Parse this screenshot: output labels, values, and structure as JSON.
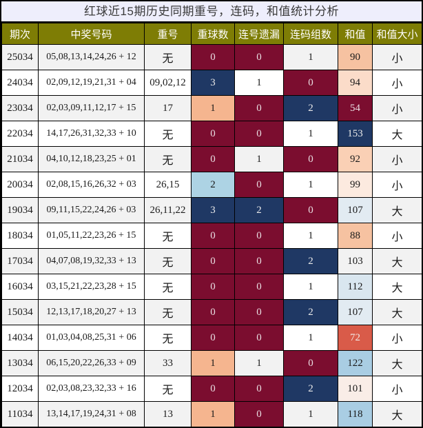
{
  "chart_data": {
    "type": "table",
    "title": "红球近15期历史同期重号，连码，和值统计分析",
    "columns": [
      "期次",
      "中奖号码",
      "重号",
      "重球数",
      "连号遗漏",
      "连码组数",
      "和值",
      "和值大小"
    ],
    "rows": [
      {
        "period": "25034",
        "numbers": "05,08,13,14,24,26 + 12",
        "repeat": "无",
        "repeat_count": {
          "v": "0",
          "bg": "#7b0d2f",
          "fg": "#eadfe3"
        },
        "consecutive_miss": {
          "v": "0",
          "bg": "#7b0d2f",
          "fg": "#eadfe3"
        },
        "consecutive_groups": {
          "v": "1",
          "bg": "",
          "fg": ""
        },
        "sum": {
          "v": "90",
          "bg": "#f6c2a1",
          "fg": ""
        },
        "size": "小"
      },
      {
        "period": "24034",
        "numbers": "02,09,12,19,21,31 + 04",
        "repeat": "09,02,12",
        "repeat_count": {
          "v": "3",
          "bg": "#1f3864",
          "fg": "#e9e9e9"
        },
        "consecutive_miss": {
          "v": "1",
          "bg": "",
          "fg": ""
        },
        "consecutive_groups": {
          "v": "0",
          "bg": "#7b0d2f",
          "fg": "#eadfe3"
        },
        "sum": {
          "v": "94",
          "bg": "#fbdcc9",
          "fg": ""
        },
        "size": "小"
      },
      {
        "period": "23034",
        "numbers": "02,03,09,11,12,17 + 15",
        "repeat": "17",
        "repeat_count": {
          "v": "1",
          "bg": "#f5b58f",
          "fg": ""
        },
        "consecutive_miss": {
          "v": "0",
          "bg": "#7b0d2f",
          "fg": "#eadfe3"
        },
        "consecutive_groups": {
          "v": "2",
          "bg": "#1f3864",
          "fg": "#e9e9e9"
        },
        "sum": {
          "v": "54",
          "bg": "#7b0d2f",
          "fg": "#eadfe3"
        },
        "size": "小"
      },
      {
        "period": "22034",
        "numbers": "14,17,26,31,32,33 + 10",
        "repeat": "无",
        "repeat_count": {
          "v": "0",
          "bg": "#7b0d2f",
          "fg": "#eadfe3"
        },
        "consecutive_miss": {
          "v": "0",
          "bg": "#7b0d2f",
          "fg": "#eadfe3"
        },
        "consecutive_groups": {
          "v": "1",
          "bg": "",
          "fg": ""
        },
        "sum": {
          "v": "153",
          "bg": "#1f3864",
          "fg": "#e9e9e9"
        },
        "size": "大"
      },
      {
        "period": "21034",
        "numbers": "04,10,12,18,23,25 + 01",
        "repeat": "无",
        "repeat_count": {
          "v": "0",
          "bg": "#7b0d2f",
          "fg": "#eadfe3"
        },
        "consecutive_miss": {
          "v": "1",
          "bg": "",
          "fg": ""
        },
        "consecutive_groups": {
          "v": "0",
          "bg": "#7b0d2f",
          "fg": "#eadfe3"
        },
        "sum": {
          "v": "92",
          "bg": "#fad0b5",
          "fg": ""
        },
        "size": "小"
      },
      {
        "period": "20034",
        "numbers": "02,08,15,16,26,32 + 03",
        "repeat": "26,15",
        "repeat_count": {
          "v": "2",
          "bg": "#add3e4",
          "fg": ""
        },
        "consecutive_miss": {
          "v": "0",
          "bg": "#7b0d2f",
          "fg": "#eadfe3"
        },
        "consecutive_groups": {
          "v": "1",
          "bg": "",
          "fg": ""
        },
        "sum": {
          "v": "99",
          "bg": "#fceadf",
          "fg": ""
        },
        "size": "小"
      },
      {
        "period": "19034",
        "numbers": "09,11,15,22,24,26 + 03",
        "repeat": "26,11,22",
        "repeat_count": {
          "v": "3",
          "bg": "#1f3864",
          "fg": "#e9e9e9"
        },
        "consecutive_miss": {
          "v": "2",
          "bg": "#1f3864",
          "fg": "#e9e9e9"
        },
        "consecutive_groups": {
          "v": "0",
          "bg": "#7b0d2f",
          "fg": "#eadfe3"
        },
        "sum": {
          "v": "107",
          "bg": "#e2ebf2",
          "fg": ""
        },
        "size": "大"
      },
      {
        "period": "18034",
        "numbers": "01,05,11,22,23,26 + 15",
        "repeat": "无",
        "repeat_count": {
          "v": "0",
          "bg": "#7b0d2f",
          "fg": "#eadfe3"
        },
        "consecutive_miss": {
          "v": "0",
          "bg": "#7b0d2f",
          "fg": "#eadfe3"
        },
        "consecutive_groups": {
          "v": "1",
          "bg": "",
          "fg": ""
        },
        "sum": {
          "v": "88",
          "bg": "#f6c2a1",
          "fg": ""
        },
        "size": "小"
      },
      {
        "period": "17034",
        "numbers": "04,07,08,19,32,33 + 13",
        "repeat": "无",
        "repeat_count": {
          "v": "0",
          "bg": "#7b0d2f",
          "fg": "#eadfe3"
        },
        "consecutive_miss": {
          "v": "0",
          "bg": "#7b0d2f",
          "fg": "#eadfe3"
        },
        "consecutive_groups": {
          "v": "2",
          "bg": "#1f3864",
          "fg": "#e9e9e9"
        },
        "sum": {
          "v": "103",
          "bg": "",
          "fg": ""
        },
        "size": "大"
      },
      {
        "period": "16034",
        "numbers": "03,15,21,22,23,28 + 15",
        "repeat": "无",
        "repeat_count": {
          "v": "0",
          "bg": "#7b0d2f",
          "fg": "#eadfe3"
        },
        "consecutive_miss": {
          "v": "0",
          "bg": "#7b0d2f",
          "fg": "#eadfe3"
        },
        "consecutive_groups": {
          "v": "1",
          "bg": "",
          "fg": ""
        },
        "sum": {
          "v": "112",
          "bg": "#d9e6ef",
          "fg": ""
        },
        "size": "大"
      },
      {
        "period": "15034",
        "numbers": "12,13,17,18,20,27 + 13",
        "repeat": "无",
        "repeat_count": {
          "v": "0",
          "bg": "#7b0d2f",
          "fg": "#eadfe3"
        },
        "consecutive_miss": {
          "v": "0",
          "bg": "#7b0d2f",
          "fg": "#eadfe3"
        },
        "consecutive_groups": {
          "v": "2",
          "bg": "#1f3864",
          "fg": "#e9e9e9"
        },
        "sum": {
          "v": "107",
          "bg": "#e2ebf2",
          "fg": ""
        },
        "size": "大"
      },
      {
        "period": "14034",
        "numbers": "01,03,04,08,25,31 + 06",
        "repeat": "无",
        "repeat_count": {
          "v": "0",
          "bg": "#7b0d2f",
          "fg": "#eadfe3"
        },
        "consecutive_miss": {
          "v": "0",
          "bg": "#7b0d2f",
          "fg": "#eadfe3"
        },
        "consecutive_groups": {
          "v": "1",
          "bg": "",
          "fg": ""
        },
        "sum": {
          "v": "72",
          "bg": "#d95b49",
          "fg": "#f2ece9"
        },
        "size": "小"
      },
      {
        "period": "13034",
        "numbers": "06,15,20,22,26,33 + 09",
        "repeat": "33",
        "repeat_count": {
          "v": "1",
          "bg": "#f5b58f",
          "fg": ""
        },
        "consecutive_miss": {
          "v": "1",
          "bg": "",
          "fg": ""
        },
        "consecutive_groups": {
          "v": "0",
          "bg": "#7b0d2f",
          "fg": "#eadfe3"
        },
        "sum": {
          "v": "122",
          "bg": "#a9cde3",
          "fg": ""
        },
        "size": "大"
      },
      {
        "period": "12034",
        "numbers": "02,03,08,23,32,33 + 16",
        "repeat": "无",
        "repeat_count": {
          "v": "0",
          "bg": "#7b0d2f",
          "fg": "#eadfe3"
        },
        "consecutive_miss": {
          "v": "0",
          "bg": "#7b0d2f",
          "fg": "#eadfe3"
        },
        "consecutive_groups": {
          "v": "2",
          "bg": "#1f3864",
          "fg": "#e9e9e9"
        },
        "sum": {
          "v": "101",
          "bg": "#f9ede7",
          "fg": ""
        },
        "size": "小"
      },
      {
        "period": "11034",
        "numbers": "13,14,17,19,24,31 + 08",
        "repeat": "13",
        "repeat_count": {
          "v": "1",
          "bg": "#f5b58f",
          "fg": ""
        },
        "consecutive_miss": {
          "v": "0",
          "bg": "#7b0d2f",
          "fg": "#eadfe3"
        },
        "consecutive_groups": {
          "v": "1",
          "bg": "",
          "fg": ""
        },
        "sum": {
          "v": "118",
          "bg": "#a9cde3",
          "fg": ""
        },
        "size": "大"
      }
    ]
  },
  "colors": {
    "title_bg": "#eeeefc",
    "header_bg": "#7e7d05",
    "header_fg": "#ffffff",
    "row_bg": "#ffffff",
    "row_alt_bg": "#f2f2f2",
    "maroon": "#7b0d2f",
    "navy": "#1f3864",
    "peach": "#f5b58f",
    "light_blue": "#add3e4",
    "coral": "#d95b49",
    "grid": "#000000"
  }
}
